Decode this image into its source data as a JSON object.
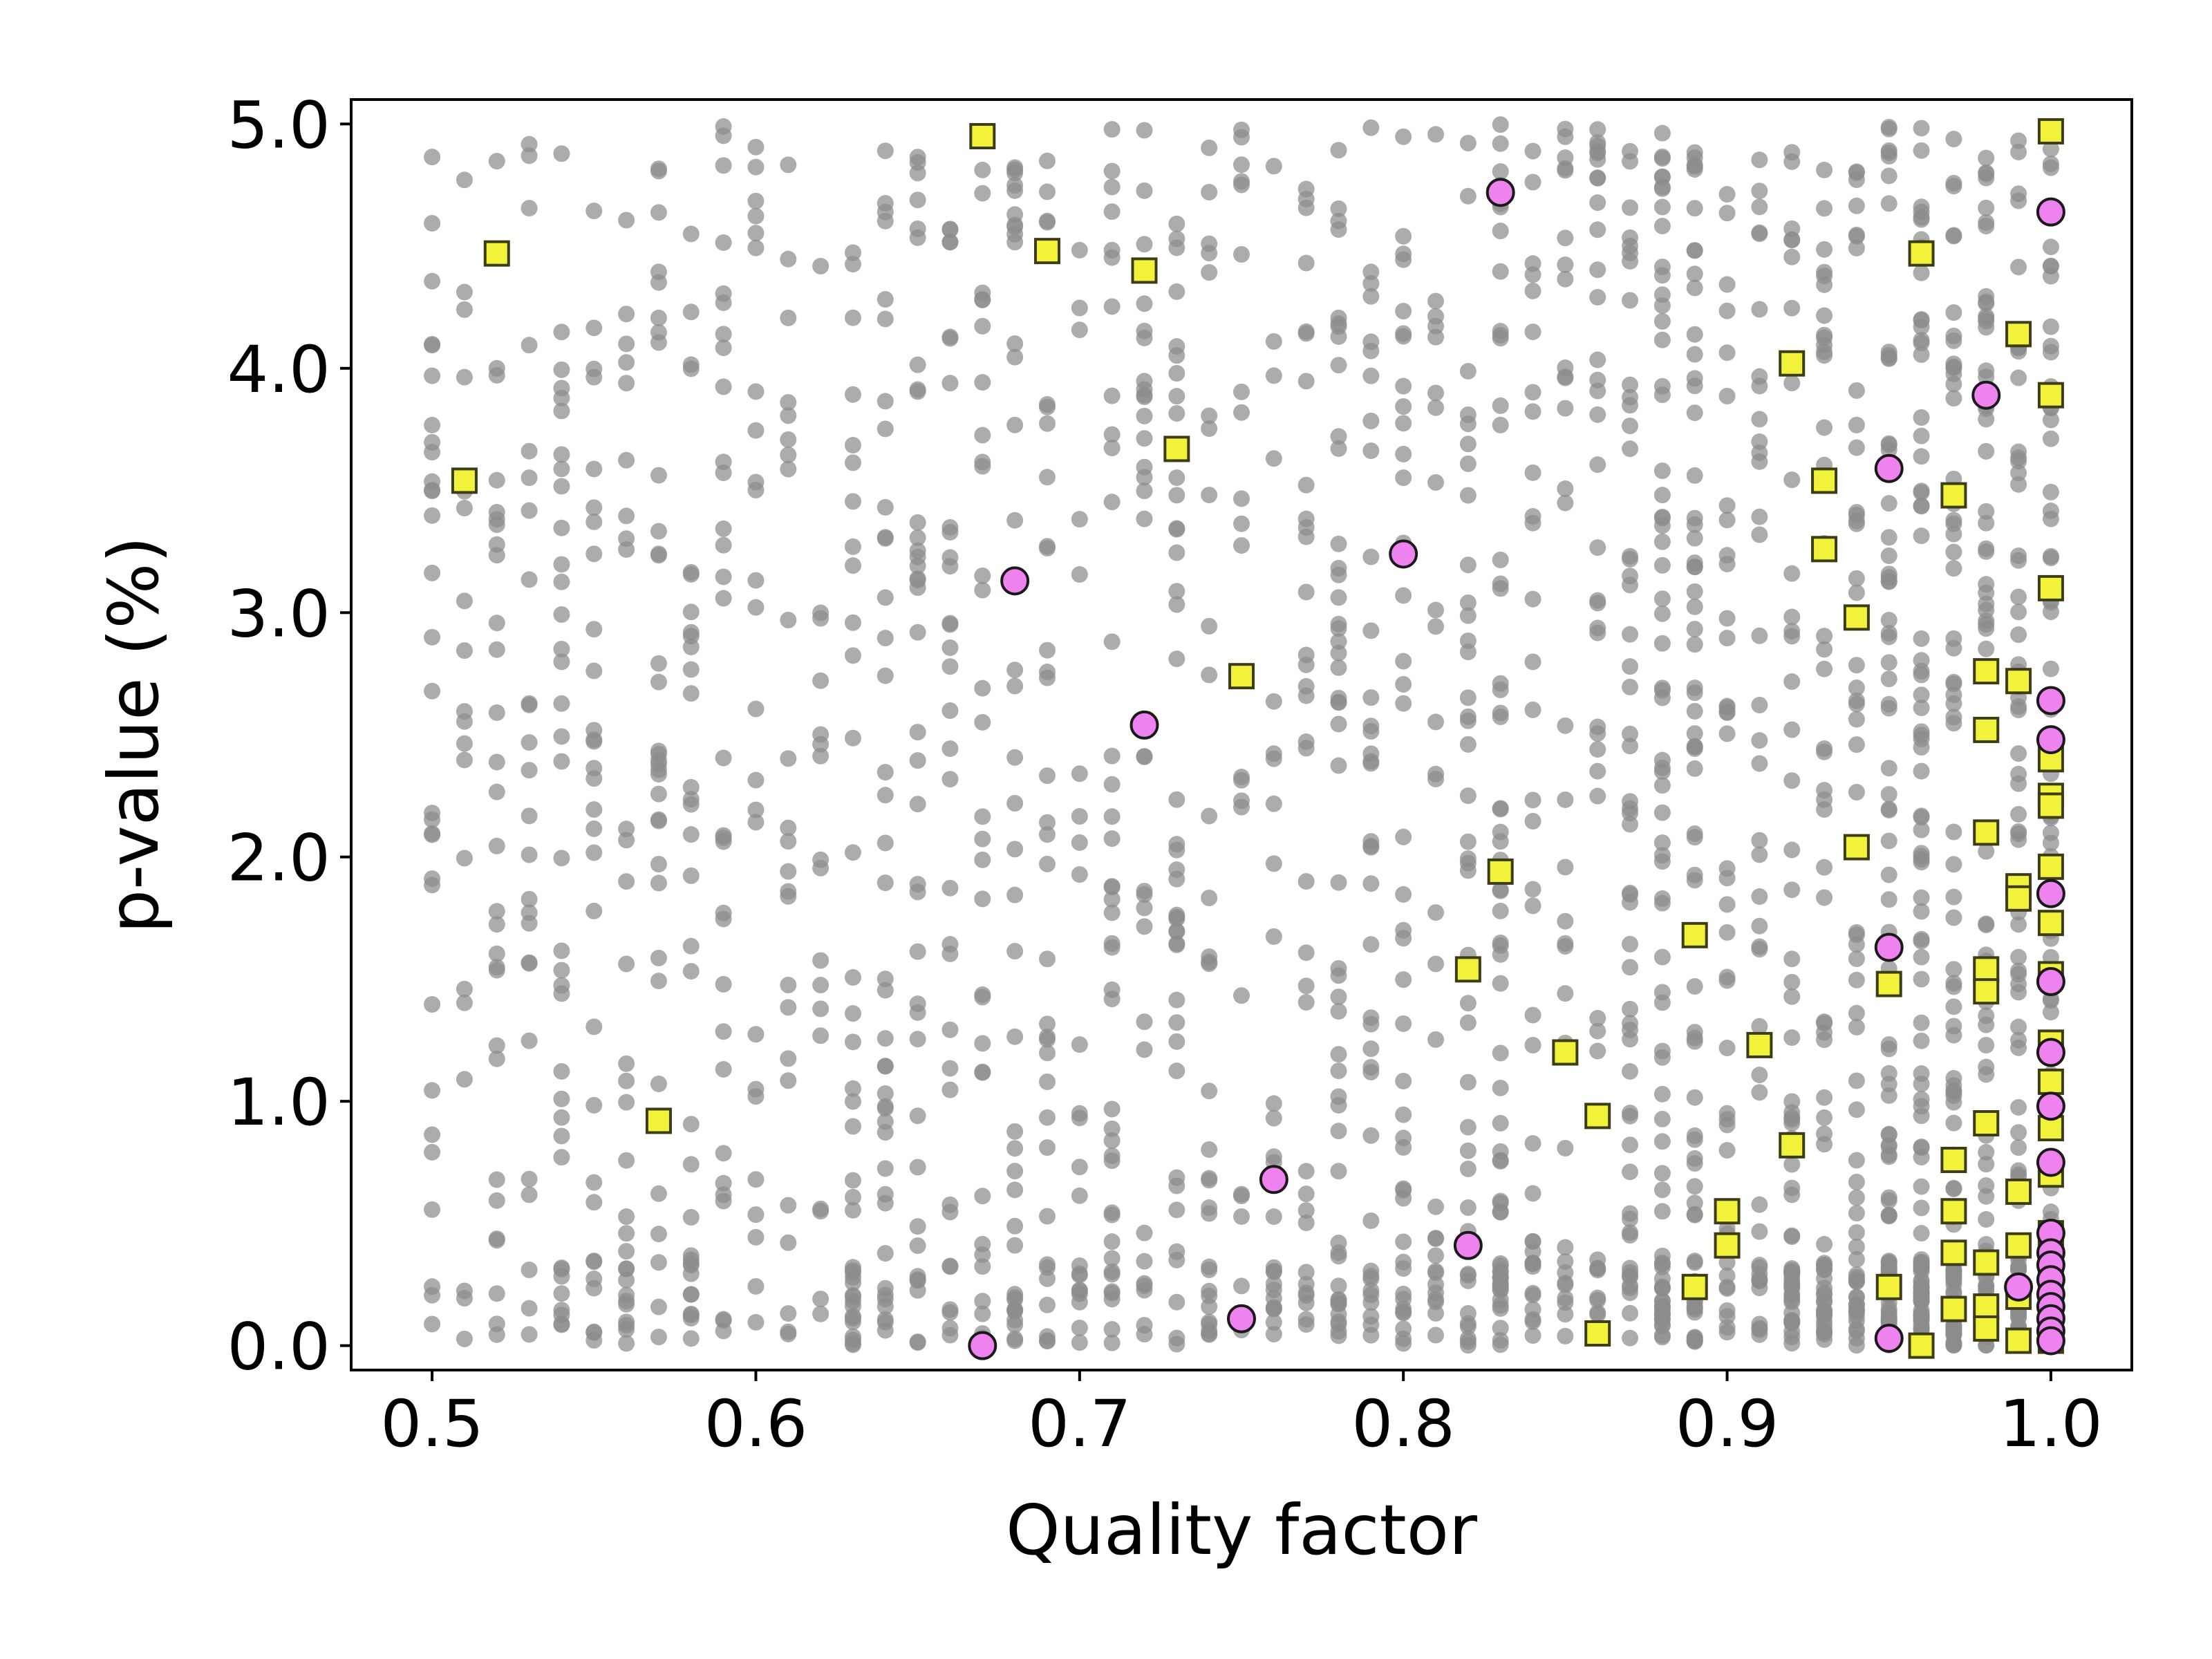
{
  "chart_data": {
    "type": "scatter",
    "title": "",
    "xlabel": "Quality factor",
    "ylabel": "p-value (%)",
    "xlim": [
      0.475,
      1.025
    ],
    "ylim": [
      -0.1,
      5.1
    ],
    "x_ticks": [
      "0.5",
      "0.6",
      "0.7",
      "0.8",
      "0.9",
      "1.0"
    ],
    "y_ticks": [
      "0.0",
      "1.0",
      "2.0",
      "3.0",
      "4.0",
      "5.0"
    ],
    "grid": false,
    "legend": "none",
    "background": {
      "description": "dense cloud of grey points in vertical columns at each quality factor from 0.50 to 1.00 (step 0.01), p-values spread 0.0–5.0",
      "x_range": [
        0.5,
        1.0
      ],
      "x_step": 0.01,
      "y_range": [
        0.0,
        5.0
      ],
      "color": "#8c8c8c"
    },
    "series": [
      {
        "marker": "square",
        "color": "#f2f23a",
        "edge": "#3d3d14",
        "points": [
          [
            0.51,
            3.54
          ],
          [
            0.52,
            4.47
          ],
          [
            0.57,
            0.92
          ],
          [
            0.67,
            4.95
          ],
          [
            0.69,
            4.48
          ],
          [
            0.72,
            4.4
          ],
          [
            0.73,
            3.67
          ],
          [
            0.75,
            2.74
          ],
          [
            0.83,
            1.94
          ],
          [
            0.82,
            1.54
          ],
          [
            0.85,
            1.2
          ],
          [
            0.86,
            0.94
          ],
          [
            0.86,
            0.05
          ],
          [
            0.89,
            1.68
          ],
          [
            0.89,
            0.24
          ],
          [
            0.9,
            0.55
          ],
          [
            0.9,
            0.41
          ],
          [
            0.91,
            1.23
          ],
          [
            0.92,
            0.82
          ],
          [
            0.92,
            4.02
          ],
          [
            0.93,
            3.54
          ],
          [
            0.93,
            3.26
          ],
          [
            0.94,
            2.98
          ],
          [
            0.94,
            2.04
          ],
          [
            0.95,
            1.48
          ],
          [
            0.95,
            0.24
          ],
          [
            0.96,
            4.47
          ],
          [
            0.96,
            0.0
          ],
          [
            0.97,
            3.48
          ],
          [
            0.97,
            0.76
          ],
          [
            0.97,
            0.55
          ],
          [
            0.97,
            0.38
          ],
          [
            0.97,
            0.15
          ],
          [
            0.98,
            2.76
          ],
          [
            0.98,
            2.52
          ],
          [
            0.98,
            2.1
          ],
          [
            0.98,
            1.54
          ],
          [
            0.98,
            1.45
          ],
          [
            0.98,
            0.91
          ],
          [
            0.98,
            0.34
          ],
          [
            0.98,
            0.16
          ],
          [
            0.98,
            0.07
          ],
          [
            0.99,
            4.14
          ],
          [
            0.99,
            2.72
          ],
          [
            0.99,
            1.88
          ],
          [
            0.99,
            1.83
          ],
          [
            0.99,
            0.63
          ],
          [
            0.99,
            0.41
          ],
          [
            0.99,
            0.2
          ],
          [
            0.99,
            0.02
          ],
          [
            1.0,
            4.97
          ],
          [
            1.0,
            3.89
          ],
          [
            1.0,
            3.1
          ],
          [
            1.0,
            2.4
          ],
          [
            1.0,
            2.25
          ],
          [
            1.0,
            2.21
          ],
          [
            1.0,
            1.96
          ],
          [
            1.0,
            1.73
          ],
          [
            1.0,
            1.52
          ],
          [
            1.0,
            1.24
          ],
          [
            1.0,
            1.08
          ],
          [
            1.0,
            0.89
          ],
          [
            1.0,
            0.7
          ],
          [
            1.0,
            0.46
          ],
          [
            1.0,
            0.31
          ],
          [
            1.0,
            0.2
          ],
          [
            1.0,
            0.1
          ],
          [
            1.0,
            0.02
          ]
        ]
      },
      {
        "marker": "circle",
        "color": "#ee82ee",
        "edge": "#1a1a1a",
        "points": [
          [
            0.67,
            0.0
          ],
          [
            0.68,
            3.13
          ],
          [
            0.72,
            2.54
          ],
          [
            0.75,
            0.11
          ],
          [
            0.76,
            0.68
          ],
          [
            0.8,
            3.24
          ],
          [
            0.82,
            0.41
          ],
          [
            0.83,
            4.72
          ],
          [
            0.95,
            3.59
          ],
          [
            0.95,
            1.63
          ],
          [
            0.95,
            0.03
          ],
          [
            0.98,
            3.89
          ],
          [
            0.99,
            0.24
          ],
          [
            1.0,
            4.64
          ],
          [
            1.0,
            2.64
          ],
          [
            1.0,
            2.48
          ],
          [
            1.0,
            1.85
          ],
          [
            1.0,
            1.49
          ],
          [
            1.0,
            1.2
          ],
          [
            1.0,
            0.98
          ],
          [
            1.0,
            0.75
          ],
          [
            1.0,
            0.46
          ],
          [
            1.0,
            0.38
          ],
          [
            1.0,
            0.33
          ],
          [
            1.0,
            0.27
          ],
          [
            1.0,
            0.21
          ],
          [
            1.0,
            0.16
          ],
          [
            1.0,
            0.11
          ],
          [
            1.0,
            0.06
          ],
          [
            1.0,
            0.02
          ]
        ]
      }
    ]
  }
}
